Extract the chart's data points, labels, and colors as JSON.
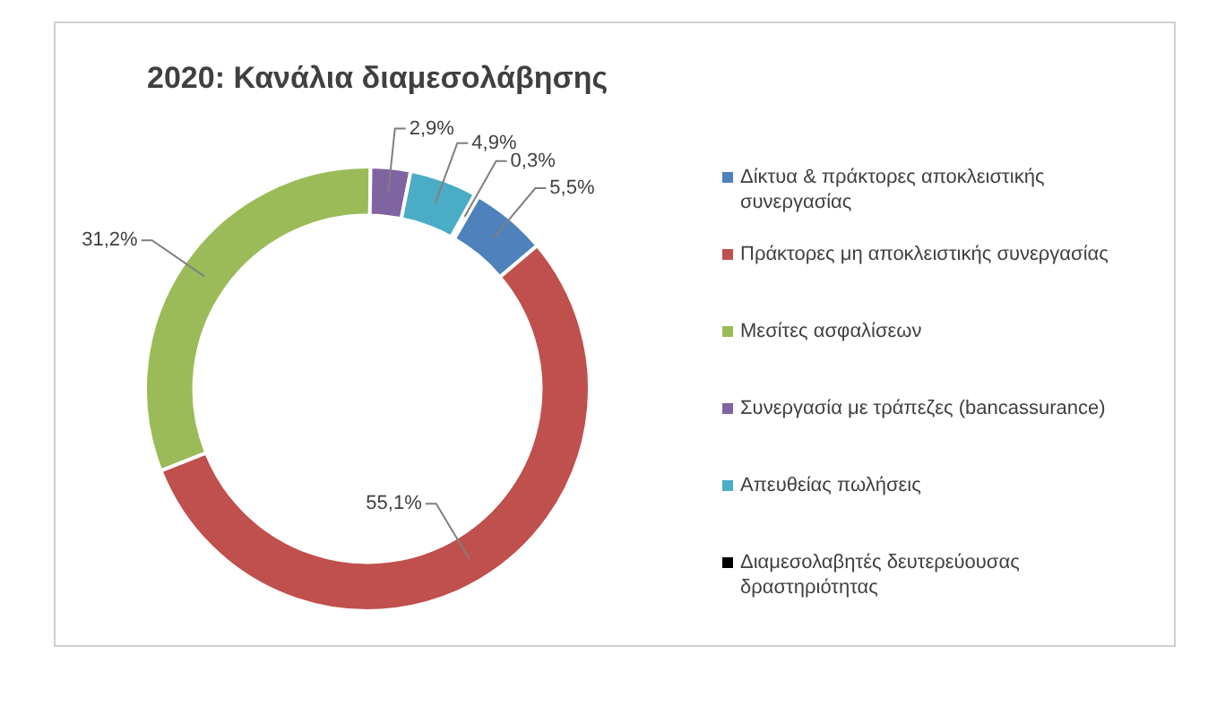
{
  "chart_data": {
    "type": "donut",
    "title": "2020: Κανάλια διαμεσολάβησης",
    "categories": [
      "Δίκτυα & πράκτορες αποκλειστικής συνεργασίας",
      "Πράκτορες μη αποκλειστικής συνεργασίας",
      "Μεσίτες ασφαλίσεων",
      "Συνεργασία με τράπεζες (bancassurance)",
      "Απευθείας πωλήσεις",
      "Διαμεσολαβητές δευτερεύουσας δραστηριότητας"
    ],
    "values": [
      5.5,
      55.1,
      31.2,
      2.9,
      4.9,
      0.3
    ],
    "colors": [
      "#4f81bd",
      "#c0504d",
      "#9bbb59",
      "#8064a2",
      "#4bacc6",
      "#000000"
    ],
    "value_labels": [
      "5,5%",
      "55,1%",
      "31,2%",
      "2,9%",
      "4,9%",
      "0,3%"
    ],
    "legend": "right"
  }
}
